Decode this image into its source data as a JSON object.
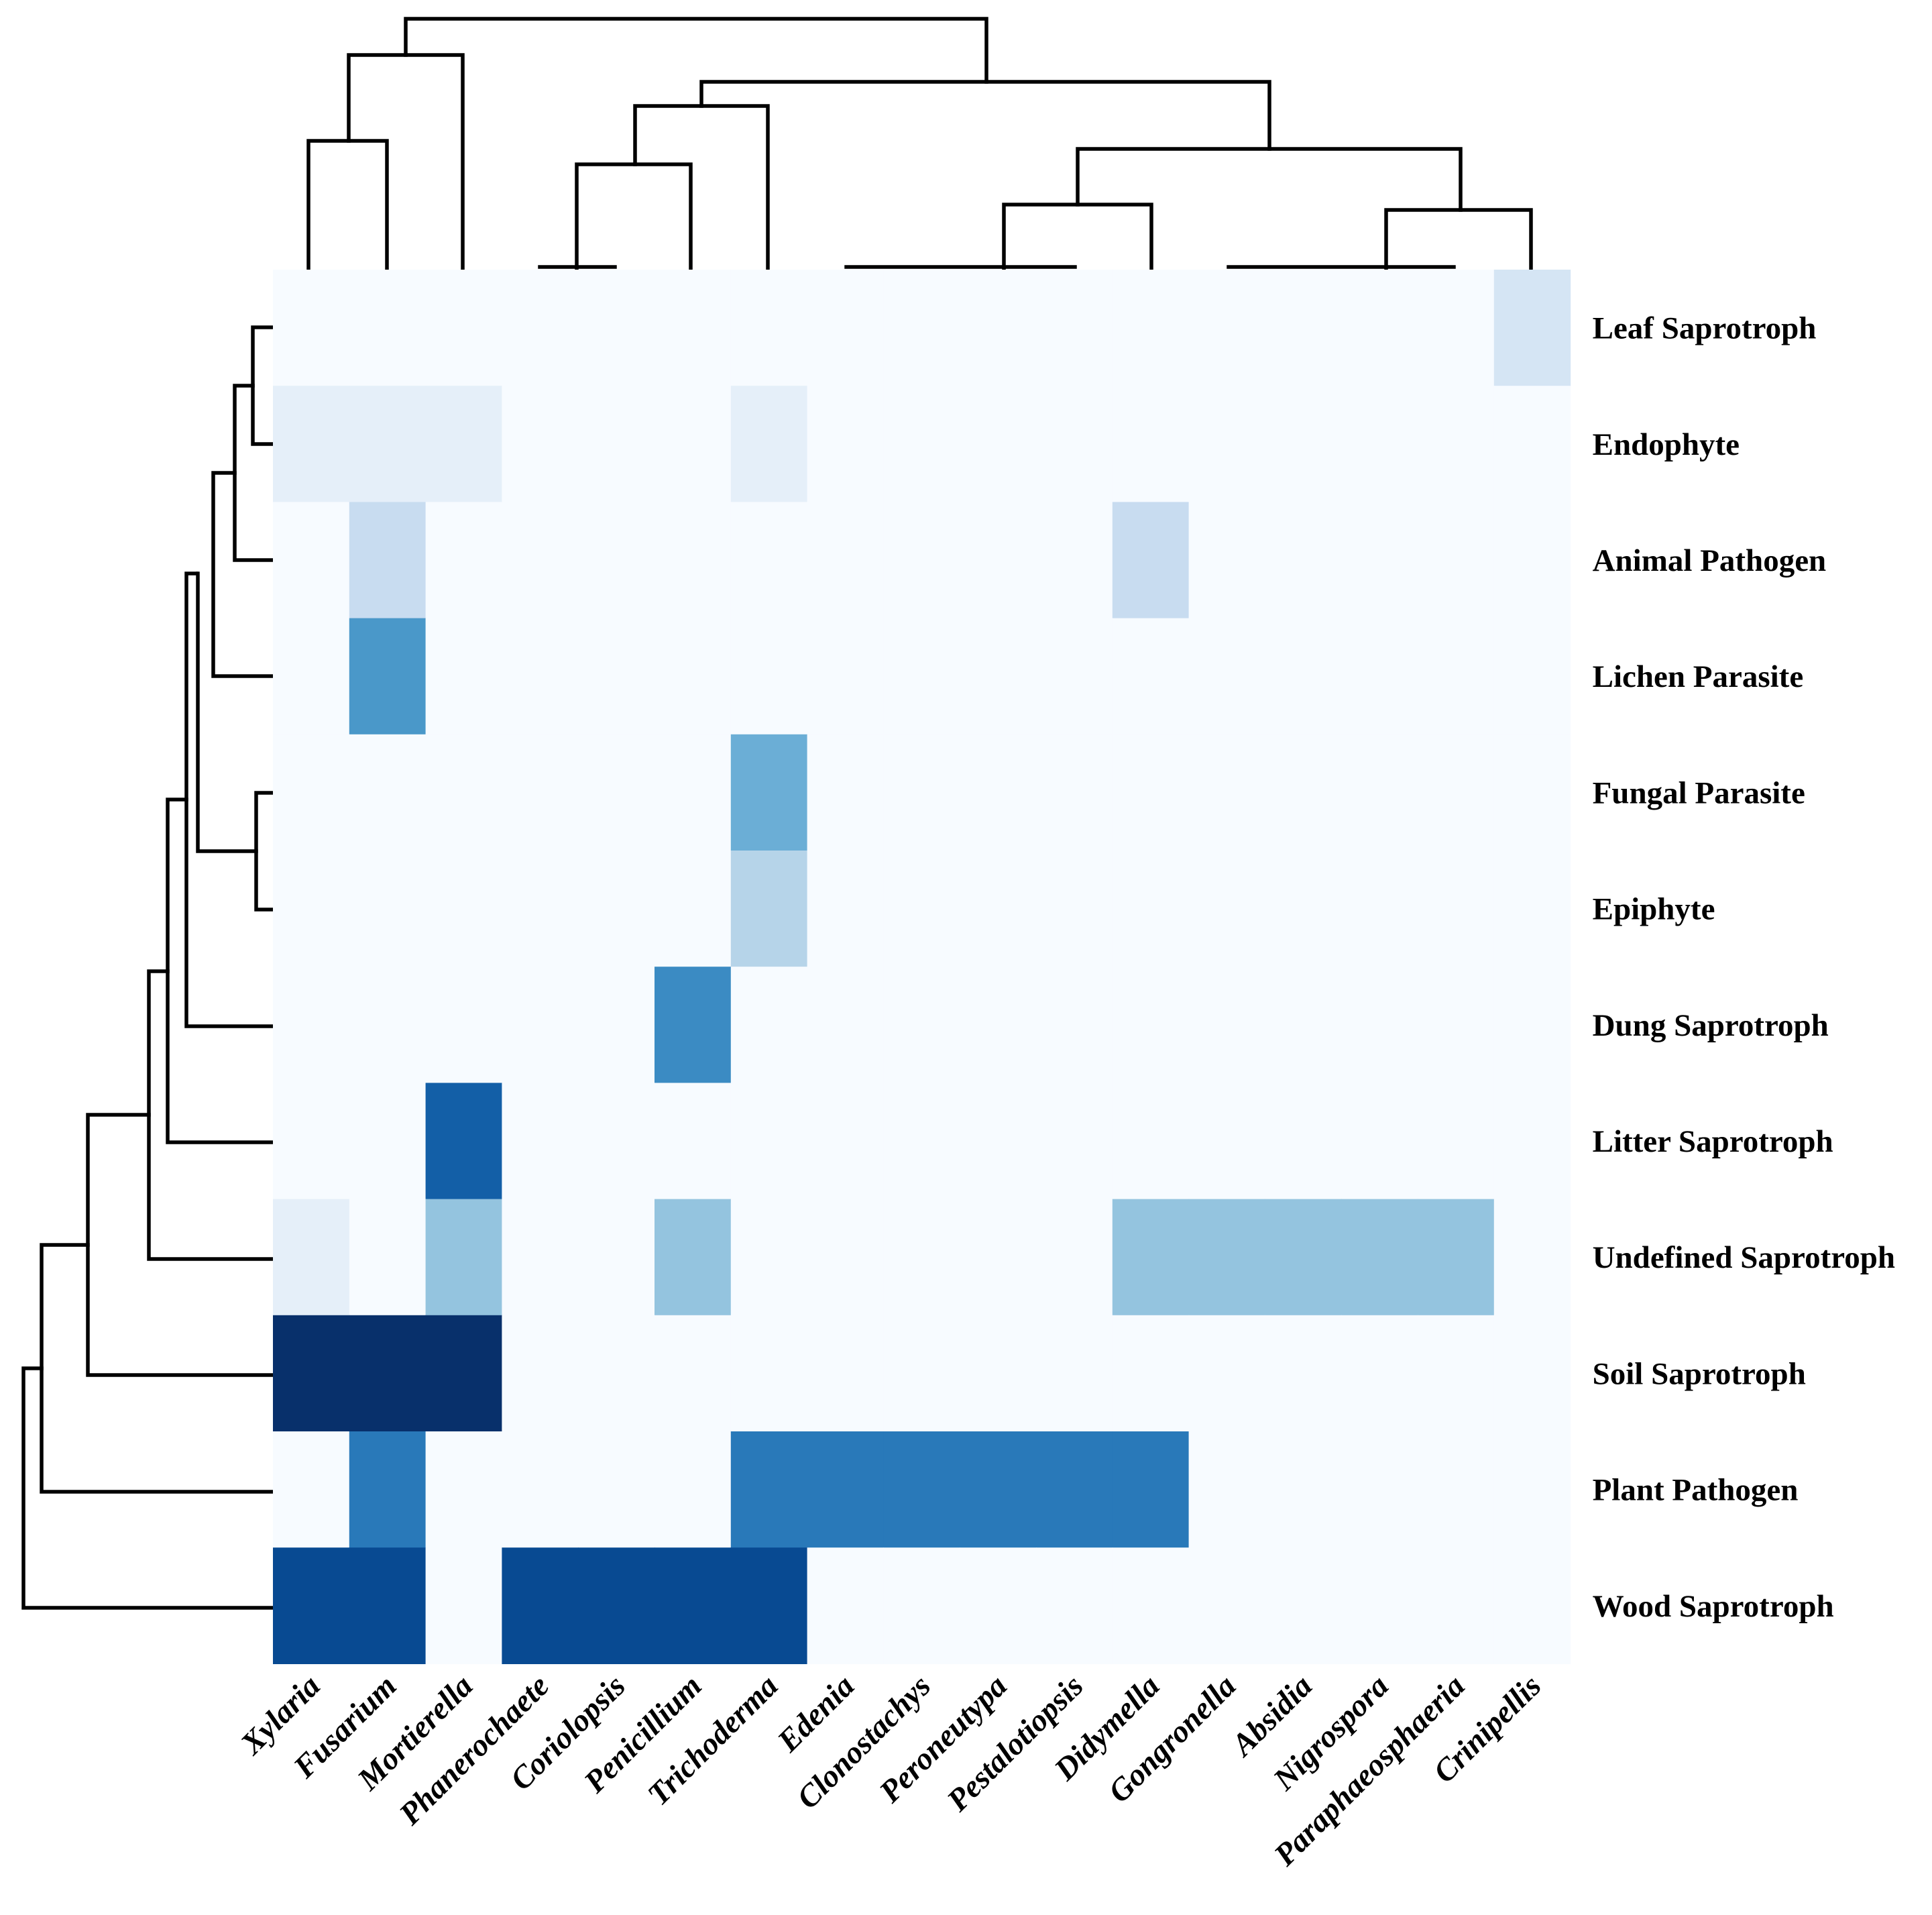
{
  "chart_data": {
    "type": "heatmap",
    "title": "",
    "xlabel": "",
    "ylabel": "",
    "rows": [
      "Leaf Saprotroph",
      "Endophyte",
      "Animal Pathogen",
      "Lichen Parasite",
      "Fungal Parasite",
      "Epiphyte",
      "Dung Saprotroph",
      "Litter Saprotroph",
      "Undefined Saprotroph",
      "Soil Saprotroph",
      "Plant Pathogen",
      "Wood Saprotroph"
    ],
    "columns": [
      "Xylaria",
      "Fusarium",
      "Mortierella",
      "Phanerochaete",
      "Coriolopsis",
      "Penicillium",
      "Trichoderma",
      "Edenia",
      "Clonostachys",
      "Peroneutypa",
      "Pestalotiopsis",
      "Didymella",
      "Gongronella",
      "Absidia",
      "Nigrospora",
      "Paraphaeosphaeria",
      "Crinipellis"
    ],
    "values": [
      [
        0,
        0,
        0,
        0,
        0,
        0,
        0,
        0,
        0,
        0,
        0,
        0,
        0,
        0,
        0,
        0,
        0.17
      ],
      [
        0.09,
        0.09,
        0.09,
        0,
        0,
        0,
        0.09,
        0,
        0,
        0,
        0,
        0,
        0,
        0,
        0,
        0,
        0
      ],
      [
        0,
        0.24,
        0,
        0,
        0,
        0,
        0,
        0,
        0,
        0,
        0,
        0.24,
        0,
        0,
        0,
        0,
        0
      ],
      [
        0,
        0.6,
        0,
        0,
        0,
        0,
        0,
        0,
        0,
        0,
        0,
        0,
        0,
        0,
        0,
        0,
        0
      ],
      [
        0,
        0,
        0,
        0,
        0,
        0,
        0.5,
        0,
        0,
        0,
        0,
        0,
        0,
        0,
        0,
        0,
        0
      ],
      [
        0,
        0,
        0,
        0,
        0,
        0,
        0.3,
        0,
        0,
        0,
        0,
        0,
        0,
        0,
        0,
        0,
        0
      ],
      [
        0,
        0,
        0,
        0,
        0,
        0.65,
        0,
        0,
        0,
        0,
        0,
        0,
        0,
        0,
        0,
        0,
        0
      ],
      [
        0,
        0,
        0.82,
        0,
        0,
        0,
        0,
        0,
        0,
        0,
        0,
        0,
        0,
        0,
        0,
        0,
        0
      ],
      [
        0.09,
        0,
        0.4,
        0,
        0,
        0.4,
        0,
        0,
        0,
        0,
        0,
        0.4,
        0.4,
        0.4,
        0.4,
        0.4,
        0
      ],
      [
        1,
        1,
        1,
        0,
        0,
        0,
        0,
        0,
        0,
        0,
        0,
        0,
        0,
        0,
        0,
        0,
        0
      ],
      [
        0,
        0.72,
        0,
        0,
        0,
        0,
        0.72,
        0.72,
        0.72,
        0.72,
        0.72,
        0.72,
        0,
        0,
        0,
        0,
        0
      ],
      [
        0.9,
        0.9,
        0,
        0.9,
        0.9,
        0.9,
        0.9,
        0,
        0,
        0,
        0,
        0,
        0,
        0,
        0,
        0,
        0
      ]
    ],
    "value_range": [
      0,
      1
    ],
    "colormap": "Blues",
    "colors": {
      "scale": [
        "#f7fbff",
        "#deebf7",
        "#c6dbef",
        "#9ecae1",
        "#6baed6",
        "#4292c6",
        "#2171b5",
        "#08519c",
        "#08306b"
      ],
      "dendrogram": "#000000",
      "label": "#000000"
    },
    "col_dendrogram": [
      {
        "x": [
          2.5,
          3.5,
          3.5,
          3.5
        ],
        "y": [
          1.0,
          1.0,
          0.0,
          0.0
        ]
      },
      {
        "x": [
          0.5,
          1.5,
          1.5,
          1.5
        ],
        "y": [
          1.0,
          1.0,
          0.0,
          0.0
        ]
      },
      {
        "x": [
          6.5,
          7.5,
          7.5,
          7.5
        ],
        "y": [
          2.4,
          2.4,
          0.0,
          0.0
        ]
      },
      {
        "x": [
          8.5,
          9.5,
          9.5,
          9.5
        ],
        "y": [
          0.0,
          0.0,
          0.0,
          0.0
        ]
      },
      {
        "x": [
          9.0,
          10.0,
          10.0,
          10.0
        ],
        "y": [
          0.0,
          0.0,
          0.0,
          0.0
        ]
      },
      {
        "x": [
          11.5,
          12.5,
          12.5,
          12.5
        ],
        "y": [
          0.0,
          0.0,
          0.0,
          0.0
        ]
      },
      {
        "x": [
          0.9,
          1.45,
          2.0,
          2.0
        ],
        "y": [
          0.0,
          0.0,
          0.0,
          0.0
        ]
      },
      {
        "x": [
          1.5,
          2.5,
          2.5,
          2.5
        ],
        "y": [
          1.0,
          1.0,
          0.0,
          0.0
        ]
      },
      {
        "x": [
          5.5,
          6.5,
          6.5,
          6.5
        ],
        "y": [
          2.4,
          2.4,
          0.0,
          0.0
        ]
      }
    ],
    "legend": "none"
  }
}
